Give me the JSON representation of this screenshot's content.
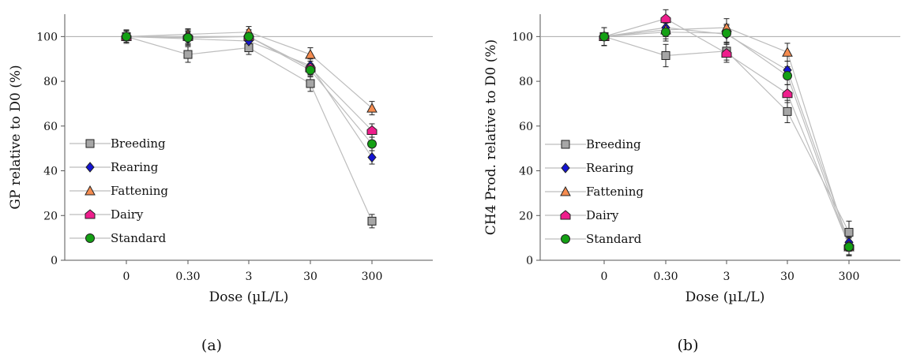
{
  "chart_data": [
    {
      "type": "line",
      "panel_label": "(a)",
      "ylabel": "GP relative to D0 (%)",
      "xlabel": "Dose (µL/L)",
      "categories": [
        "0",
        "0.30",
        "3",
        "30",
        "300"
      ],
      "ylim": [
        0,
        110
      ],
      "yticks": [
        "0",
        "20",
        "40",
        "60",
        "80",
        "100"
      ],
      "reference_line": 100,
      "legend_position": "lower-left",
      "series": [
        {
          "name": "Breeding",
          "marker": "square",
          "color": "#a6a6a6",
          "values": [
            100,
            92,
            95,
            79,
            17.5
          ],
          "errors": [
            3,
            3.5,
            3,
            3.5,
            3
          ]
        },
        {
          "name": "Rearing",
          "marker": "diamond",
          "color": "#1414d2",
          "values": [
            100,
            99,
            98,
            87,
            46
          ],
          "errors": [
            2.5,
            3,
            3,
            3,
            3
          ]
        },
        {
          "name": "Fattening",
          "marker": "triangle",
          "color": "#f58c50",
          "values": [
            100,
            101,
            102,
            92,
            68
          ],
          "errors": [
            2.5,
            2.5,
            2.5,
            3,
            3
          ]
        },
        {
          "name": "Dairy",
          "marker": "house",
          "color": "#ee1e8c",
          "values": [
            100,
            100,
            100,
            86,
            58
          ],
          "errors": [
            2.5,
            3,
            3,
            3,
            3
          ]
        },
        {
          "name": "Standard",
          "marker": "circle",
          "color": "#14a014",
          "values": [
            100,
            99.5,
            100,
            85,
            52
          ],
          "errors": [
            2.5,
            3,
            3,
            3,
            3
          ]
        }
      ]
    },
    {
      "type": "line",
      "panel_label": "(b)",
      "ylabel": "CH4 Prod. relative to D0 (%)",
      "xlabel": "Dose (µL/L)",
      "categories": [
        "0",
        "0.30",
        "3",
        "30",
        "300"
      ],
      "ylim": [
        0,
        110
      ],
      "yticks": [
        "0",
        "20",
        "40",
        "60",
        "80",
        "100"
      ],
      "reference_line": 100,
      "legend_position": "lower-left",
      "series": [
        {
          "name": "Breeding",
          "marker": "square",
          "color": "#a6a6a6",
          "values": [
            100,
            91.5,
            93.5,
            66.5,
            12.5
          ],
          "errors": [
            4,
            5,
            4,
            5,
            5
          ]
        },
        {
          "name": "Rearing",
          "marker": "diamond",
          "color": "#1414d2",
          "values": [
            100,
            104,
            101,
            85,
            8
          ],
          "errors": [
            4,
            4,
            4,
            4,
            4
          ]
        },
        {
          "name": "Fattening",
          "marker": "triangle",
          "color": "#f58c50",
          "values": [
            100,
            103,
            104,
            93,
            6
          ],
          "errors": [
            4,
            4,
            4,
            4,
            4
          ]
        },
        {
          "name": "Dairy",
          "marker": "house",
          "color": "#ee1e8c",
          "values": [
            100,
            108,
            92.5,
            74.5,
            6.5
          ],
          "errors": [
            4,
            4,
            4,
            4,
            4
          ]
        },
        {
          "name": "Standard",
          "marker": "circle",
          "color": "#14a014",
          "values": [
            100,
            102,
            101.5,
            82.5,
            6
          ],
          "errors": [
            4,
            4,
            4,
            4,
            4
          ]
        }
      ]
    }
  ]
}
